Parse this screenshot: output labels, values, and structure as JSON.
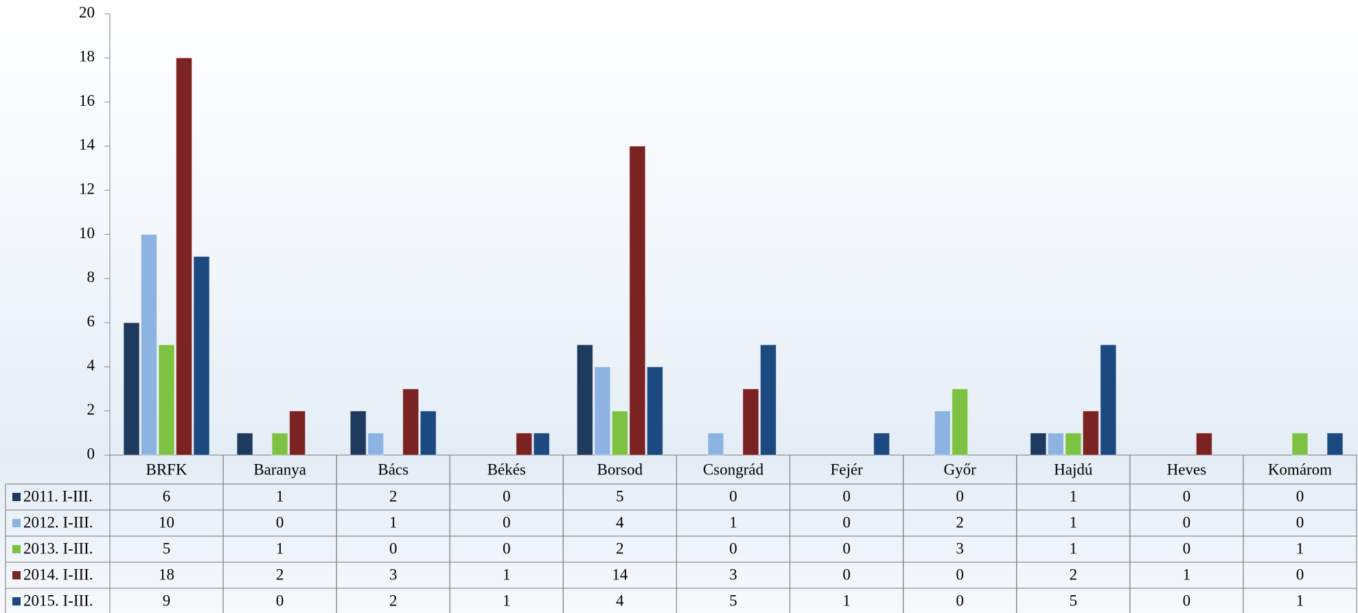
{
  "chart_data": {
    "type": "bar",
    "categories": [
      "BRFK",
      "Baranya",
      "Bács",
      "Békés",
      "Borsod",
      "Csongrád",
      "Fejér",
      "Győr",
      "Hajdú",
      "Heves",
      "Komárom"
    ],
    "series": [
      {
        "name": "2011. I-III.",
        "color": "#1f3a5f",
        "values": [
          6,
          1,
          2,
          0,
          5,
          0,
          0,
          0,
          1,
          0,
          0
        ]
      },
      {
        "name": "2012. I-III.",
        "color": "#8db3e2",
        "values": [
          10,
          0,
          1,
          0,
          4,
          1,
          0,
          2,
          1,
          0,
          0
        ]
      },
      {
        "name": "2013. I-III.",
        "color": "#7dc242",
        "values": [
          5,
          1,
          0,
          0,
          2,
          0,
          0,
          3,
          1,
          0,
          1
        ]
      },
      {
        "name": "2014. I-III.",
        "color": "#7b2222",
        "values": [
          18,
          2,
          3,
          1,
          14,
          3,
          0,
          0,
          2,
          1,
          0
        ]
      },
      {
        "name": "2015. I-III.",
        "color": "#1c4a80",
        "values": [
          9,
          0,
          2,
          1,
          4,
          5,
          1,
          0,
          5,
          0,
          1
        ]
      }
    ],
    "ylim": [
      0,
      20
    ],
    "yticks": [
      0,
      2,
      4,
      6,
      8,
      10,
      12,
      14,
      16,
      18,
      20
    ],
    "data_table": true
  }
}
